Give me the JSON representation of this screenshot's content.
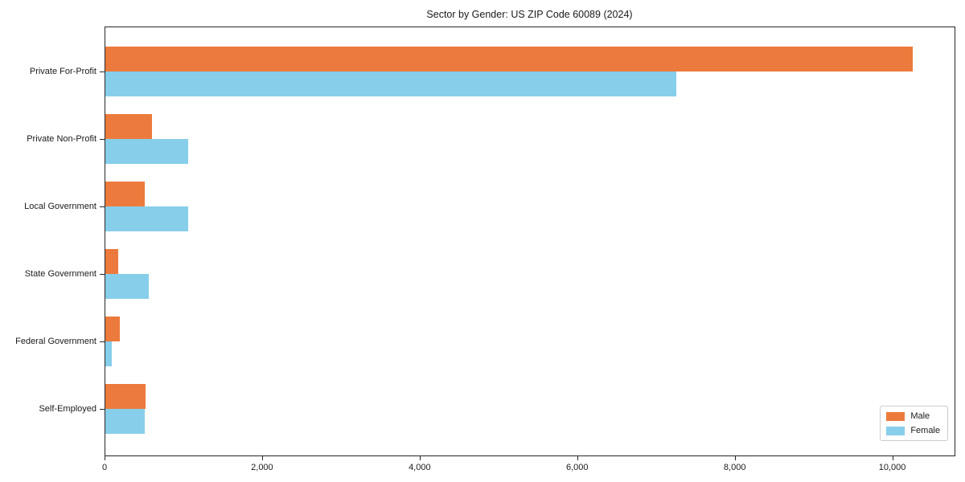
{
  "chart_data": {
    "type": "bar",
    "orientation": "horizontal",
    "title": "Sector by Gender: US ZIP Code 60089 (2024)",
    "categories": [
      "Private For-Profit",
      "Private Non-Profit",
      "Local Government",
      "State Government",
      "Federal Government",
      "Self-Employed"
    ],
    "series": [
      {
        "name": "Male",
        "color": "#ec7a3c",
        "values": [
          10250,
          590,
          505,
          160,
          180,
          510
        ]
      },
      {
        "name": "Female",
        "color": "#87ceeb",
        "values": [
          7250,
          1055,
          1050,
          555,
          85,
          505
        ]
      }
    ],
    "xlabel": "",
    "ylabel": "",
    "xlim": [
      0,
      10780
    ],
    "xticks": [
      0,
      2000,
      4000,
      6000,
      8000,
      10000
    ],
    "xtick_labels": [
      "0",
      "2,000",
      "4,000",
      "6,000",
      "8,000",
      "10,000"
    ],
    "grid": false,
    "legend": {
      "position": "lower right",
      "entries": [
        "Male",
        "Female"
      ]
    }
  }
}
